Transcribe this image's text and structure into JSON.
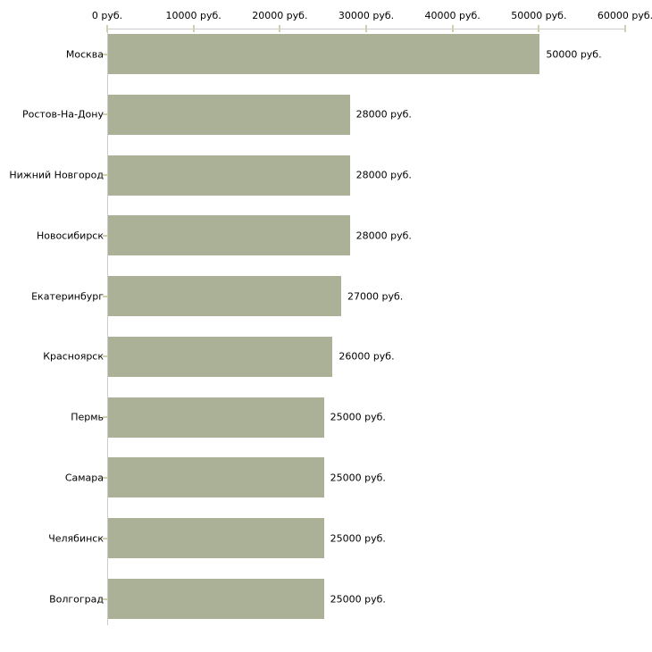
{
  "chart_data": {
    "type": "bar",
    "orientation": "horizontal",
    "title": "",
    "categories": [
      "Москва",
      "Ростов-На-Дону",
      "Нижний Новгород",
      "Новосибирск",
      "Екатеринбург",
      "Красноярск",
      "Пермь",
      "Самара",
      "Челябинск",
      "Волгоград"
    ],
    "values": [
      50000,
      28000,
      28000,
      28000,
      27000,
      26000,
      25000,
      25000,
      25000,
      25000
    ],
    "bar_labels": [
      "50000 руб.",
      "28000 руб.",
      "28000 руб.",
      "28000 руб.",
      "27000 руб.",
      "26000 руб.",
      "25000 руб.",
      "25000 руб.",
      "25000 руб.",
      "25000 руб."
    ],
    "xlabel": "",
    "ylabel": "",
    "unit": "руб.",
    "x_axis": {
      "position": "top",
      "range": [
        0,
        60000
      ],
      "ticks": [
        0,
        10000,
        20000,
        30000,
        40000,
        50000,
        60000
      ],
      "tick_labels": [
        "0 руб.",
        "10000 руб.",
        "20000 руб.",
        "30000 руб.",
        "40000 руб.",
        "50000 руб.",
        "60000 руб."
      ]
    },
    "grid": false,
    "legend": false,
    "colors": {
      "bar": "#abb197",
      "axis_line": "#cccccc",
      "tick_mark": "#d2cfae",
      "text": "#000000",
      "background": "#ffffff"
    }
  }
}
